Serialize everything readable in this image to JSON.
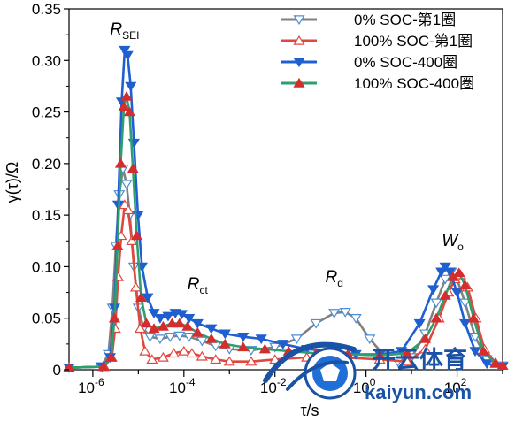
{
  "chart_data": {
    "type": "line",
    "xscale": "log",
    "xlim": [
      3e-07,
      1000
    ],
    "ylim": [
      0,
      0.35
    ],
    "xlabel": "τ/s",
    "ylabel": "γ(τ)/Ω",
    "yticks": [
      "0",
      "0.05",
      "0.10",
      "0.15",
      "0.20",
      "0.25",
      "0.30",
      "0.35"
    ],
    "xticks": [
      {
        "base": "10",
        "exp": "-6",
        "value": 1e-06
      },
      {
        "base": "10",
        "exp": "-4",
        "value": 0.0001
      },
      {
        "base": "10",
        "exp": "-2",
        "value": 0.01
      },
      {
        "base": "10",
        "exp": "0",
        "value": 1
      },
      {
        "base": "10",
        "exp": "2",
        "value": 100
      }
    ],
    "legend_position": "top-right",
    "annotations": [
      {
        "main": "R",
        "sub": "SEI",
        "x": 5e-06,
        "y": 0.325
      },
      {
        "main": "R",
        "sub": "ct",
        "x": 0.0002,
        "y": 0.078
      },
      {
        "main": "R",
        "sub": "d",
        "x": 0.2,
        "y": 0.085
      },
      {
        "main": "W",
        "sub": "o",
        "x": 80,
        "y": 0.12
      }
    ],
    "series": [
      {
        "name": "0% SOC-第1圈",
        "color": "#808080",
        "marker_color": "#4a8fd6",
        "marker": "triangle-down-open",
        "points": [
          [
            3e-07,
            0.002
          ],
          [
            1.5e-06,
            0.003
          ],
          [
            2.2e-06,
            0.015
          ],
          [
            2.7e-06,
            0.06
          ],
          [
            3.2e-06,
            0.12
          ],
          [
            3.8e-06,
            0.17
          ],
          [
            4.6e-06,
            0.195
          ],
          [
            5.5e-06,
            0.18
          ],
          [
            6.5e-06,
            0.15
          ],
          [
            8e-06,
            0.1
          ],
          [
            1e-05,
            0.06
          ],
          [
            1.3e-05,
            0.04
          ],
          [
            1.8e-05,
            0.032
          ],
          [
            3e-05,
            0.03
          ],
          [
            5e-05,
            0.032
          ],
          [
            8e-05,
            0.033
          ],
          [
            0.00013,
            0.032
          ],
          [
            0.00025,
            0.028
          ],
          [
            0.0005,
            0.023
          ],
          [
            0.001,
            0.02
          ],
          [
            0.003,
            0.019
          ],
          [
            0.01,
            0.022
          ],
          [
            0.03,
            0.03
          ],
          [
            0.08,
            0.045
          ],
          [
            0.2,
            0.055
          ],
          [
            0.35,
            0.056
          ],
          [
            0.6,
            0.05
          ],
          [
            1.2,
            0.03
          ],
          [
            2.5,
            0.014
          ],
          [
            5,
            0.008
          ],
          [
            10,
            0.012
          ],
          [
            20,
            0.035
          ],
          [
            35,
            0.065
          ],
          [
            55,
            0.088
          ],
          [
            75,
            0.095
          ],
          [
            100,
            0.088
          ],
          [
            150,
            0.065
          ],
          [
            250,
            0.032
          ],
          [
            450,
            0.01
          ],
          [
            1000,
            0.004
          ]
        ]
      },
      {
        "name": "100% SOC-第1圈",
        "color": "#e0483f",
        "marker_color": "#e0483f",
        "marker": "triangle-up-open",
        "points": [
          [
            3e-07,
            0.002
          ],
          [
            1.8e-06,
            0.003
          ],
          [
            2.6e-06,
            0.012
          ],
          [
            3.1e-06,
            0.04
          ],
          [
            3.6e-06,
            0.09
          ],
          [
            4.2e-06,
            0.13
          ],
          [
            5e-06,
            0.16
          ],
          [
            6e-06,
            0.155
          ],
          [
            7.2e-06,
            0.125
          ],
          [
            8.8e-06,
            0.08
          ],
          [
            1.1e-05,
            0.04
          ],
          [
            1.4e-05,
            0.018
          ],
          [
            2e-05,
            0.01
          ],
          [
            3.5e-05,
            0.012
          ],
          [
            6e-05,
            0.016
          ],
          [
            0.0001,
            0.018
          ],
          [
            0.00015,
            0.016
          ],
          [
            0.00025,
            0.013
          ],
          [
            0.0005,
            0.01
          ],
          [
            0.001,
            0.008
          ],
          [
            0.003,
            0.008
          ],
          [
            0.01,
            0.01
          ],
          [
            0.05,
            0.012
          ],
          [
            0.3,
            0.012
          ],
          [
            2,
            0.01
          ],
          [
            8,
            0.008
          ],
          [
            20,
            0.02
          ],
          [
            40,
            0.05
          ],
          [
            65,
            0.075
          ],
          [
            90,
            0.088
          ],
          [
            120,
            0.092
          ],
          [
            170,
            0.08
          ],
          [
            260,
            0.05
          ],
          [
            400,
            0.02
          ],
          [
            700,
            0.007
          ],
          [
            1000,
            0.004
          ]
        ]
      },
      {
        "name": "0% SOC-400圈",
        "color": "#1f5fd0",
        "marker_color": "#1f5fd0",
        "marker": "triangle-down-filled",
        "points": [
          [
            3e-07,
            0.002
          ],
          [
            1.6e-06,
            0.003
          ],
          [
            2.4e-06,
            0.012
          ],
          [
            3e-06,
            0.06
          ],
          [
            3.6e-06,
            0.16
          ],
          [
            4.3e-06,
            0.26
          ],
          [
            5e-06,
            0.31
          ],
          [
            5.8e-06,
            0.305
          ],
          [
            6.8e-06,
            0.275
          ],
          [
            8e-06,
            0.22
          ],
          [
            9.8e-06,
            0.15
          ],
          [
            1.2e-05,
            0.1
          ],
          [
            1.6e-05,
            0.07
          ],
          [
            2.2e-05,
            0.055
          ],
          [
            3e-05,
            0.05
          ],
          [
            4.5e-05,
            0.052
          ],
          [
            6.5e-05,
            0.055
          ],
          [
            9e-05,
            0.054
          ],
          [
            0.00013,
            0.05
          ],
          [
            0.0002,
            0.045
          ],
          [
            0.0004,
            0.04
          ],
          [
            0.0008,
            0.035
          ],
          [
            0.002,
            0.032
          ],
          [
            0.005,
            0.03
          ],
          [
            0.015,
            0.025
          ],
          [
            0.05,
            0.02
          ],
          [
            0.2,
            0.018
          ],
          [
            0.6,
            0.015
          ],
          [
            2,
            0.015
          ],
          [
            6,
            0.018
          ],
          [
            15,
            0.045
          ],
          [
            30,
            0.078
          ],
          [
            45,
            0.095
          ],
          [
            55,
            0.1
          ],
          [
            70,
            0.095
          ],
          [
            100,
            0.075
          ],
          [
            150,
            0.045
          ],
          [
            250,
            0.018
          ],
          [
            450,
            0.006
          ],
          [
            1000,
            0.003
          ]
        ]
      },
      {
        "name": "100% SOC-400圈",
        "color": "#2f9e6e",
        "marker_color": "#d42d2d",
        "marker": "triangle-up-filled",
        "points": [
          [
            3e-07,
            0.002
          ],
          [
            1.7e-06,
            0.003
          ],
          [
            2.5e-06,
            0.012
          ],
          [
            3e-06,
            0.05
          ],
          [
            3.5e-06,
            0.12
          ],
          [
            4.1e-06,
            0.2
          ],
          [
            4.8e-06,
            0.255
          ],
          [
            5.5e-06,
            0.265
          ],
          [
            6.4e-06,
            0.25
          ],
          [
            7.6e-06,
            0.195
          ],
          [
            9.2e-06,
            0.13
          ],
          [
            1.15e-05,
            0.07
          ],
          [
            1.5e-05,
            0.045
          ],
          [
            2.2e-05,
            0.04
          ],
          [
            3.5e-05,
            0.042
          ],
          [
            5.5e-05,
            0.045
          ],
          [
            8e-05,
            0.045
          ],
          [
            0.00012,
            0.042
          ],
          [
            0.0002,
            0.036
          ],
          [
            0.0004,
            0.03
          ],
          [
            0.0008,
            0.025
          ],
          [
            0.002,
            0.022
          ],
          [
            0.006,
            0.02
          ],
          [
            0.02,
            0.018
          ],
          [
            0.08,
            0.016
          ],
          [
            0.4,
            0.015
          ],
          [
            2,
            0.014
          ],
          [
            8,
            0.016
          ],
          [
            20,
            0.03
          ],
          [
            35,
            0.05
          ],
          [
            55,
            0.072
          ],
          [
            80,
            0.09
          ],
          [
            110,
            0.094
          ],
          [
            150,
            0.082
          ],
          [
            230,
            0.05
          ],
          [
            380,
            0.018
          ],
          [
            700,
            0.006
          ],
          [
            1000,
            0.004
          ]
        ]
      }
    ]
  },
  "watermark": {
    "cn": "开云体育",
    "en": "kaiyun.com"
  }
}
